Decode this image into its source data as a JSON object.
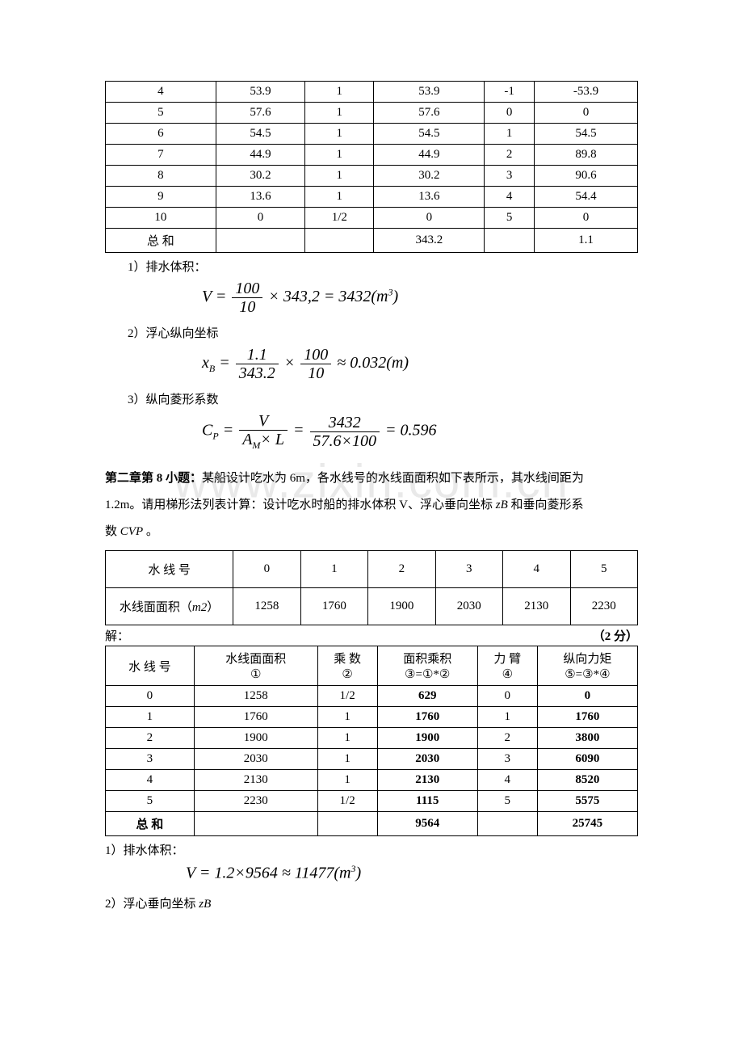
{
  "watermark": "www.zixin.com.cn",
  "table1": {
    "rows": [
      [
        "4",
        "53.9",
        "1",
        "53.9",
        "-1",
        "-53.9"
      ],
      [
        "5",
        "57.6",
        "1",
        "57.6",
        "0",
        "0"
      ],
      [
        "6",
        "54.5",
        "1",
        "54.5",
        "1",
        "54.5"
      ],
      [
        "7",
        "44.9",
        "1",
        "44.9",
        "2",
        "89.8"
      ],
      [
        "8",
        "30.2",
        "1",
        "30.2",
        "3",
        "90.6"
      ],
      [
        "9",
        "13.6",
        "1",
        "13.6",
        "4",
        "54.4"
      ],
      [
        "10",
        "0",
        "1/2",
        "0",
        "5",
        "0"
      ]
    ],
    "sum_label": "总  和",
    "sum_col4": "343.2",
    "sum_col6": "1.1"
  },
  "sec1": {
    "label": "1）排水体积：",
    "formula_text": "V = (100/10) × 343,2 = 3432 (m³)",
    "num": "100",
    "den": "10",
    "rhs": "× 343,2 = 3432(",
    "unit_base": "m",
    "unit_sup": "3",
    "tail": ")"
  },
  "sec2": {
    "label": "2）浮心纵向坐标",
    "lhs_base": "x",
    "lhs_sub": "B",
    "num1": "1.1",
    "den1": "343.2",
    "num2": "100",
    "den2": "10",
    "rhs": "≈ 0.032(m)"
  },
  "sec3": {
    "label": "3）纵向菱形系数",
    "lhs_base": "C",
    "lhs_sub": "P",
    "num_sym": "V",
    "den_sym_a": "A",
    "den_sym_a_sub": "M",
    "den_sym_b": "× L",
    "num2": "3432",
    "den2": "57.6×100",
    "rhs": "= 0.596"
  },
  "problem2": {
    "title": "第二章第 8 小题：",
    "body1": "某船设计吃水为 6m，各水线号的水线面面积如下表所示，其水线间距为",
    "body2_a": "1.2m。请用梯形法列表计算：设计吃水时船的排水体积 V、浮心垂向坐标",
    "body2_sym_base": "z",
    "body2_sym_sub": "B",
    "body2_b": "和垂向菱形系",
    "body3_a": "数",
    "body3_sym_base": "C",
    "body3_sym_sub": "VP",
    "body3_b": "。"
  },
  "table2a": {
    "h1": "水   线   号",
    "h2": "水线面面积（",
    "h2_unit_base": "m",
    "h2_unit_sup": "2",
    "h2_tail": "）",
    "cols": [
      "0",
      "1",
      "2",
      "3",
      "4",
      "5"
    ],
    "vals": [
      "1258",
      "1760",
      "1900",
      "2030",
      "2130",
      "2230"
    ]
  },
  "solve_label": "解：",
  "solve_points": "（2 分）",
  "table2b": {
    "headers": {
      "c1a": "水  线  号",
      "c2a": "水线面面积",
      "c2b": "①",
      "c3a": "乘  数",
      "c3b": "②",
      "c4a": "面积乘积",
      "c4b": "③=①*②",
      "c5a": "力   臂",
      "c5b": "④",
      "c6a": "纵向力矩",
      "c6b": "⑤=③*④"
    },
    "rows": [
      [
        "0",
        "1258",
        "1/2",
        "629",
        "0",
        "0"
      ],
      [
        "1",
        "1760",
        "1",
        "1760",
        "1",
        "1760"
      ],
      [
        "2",
        "1900",
        "1",
        "1900",
        "2",
        "3800"
      ],
      [
        "3",
        "2030",
        "1",
        "2030",
        "3",
        "6090"
      ],
      [
        "4",
        "2130",
        "1",
        "2130",
        "4",
        "8520"
      ],
      [
        "5",
        "2230",
        "1/2",
        "1115",
        "5",
        "5575"
      ]
    ],
    "sum_label": "总  和",
    "sum_col4": "9564",
    "sum_col6": "25745"
  },
  "sec4": {
    "label": "1）排水体积：",
    "lhs": "V",
    "rhs_a": "= 1.2×9564 ≈ 11477(",
    "unit_base": "m",
    "unit_sup": "3",
    "rhs_b": ")"
  },
  "sec5": {
    "label_a": "2）浮心垂向坐标",
    "sym_base": "z",
    "sym_sub": "B"
  },
  "colors": {
    "text": "#000000",
    "bg": "#ffffff",
    "watermark": "#e9e9e9",
    "border": "#000000"
  }
}
